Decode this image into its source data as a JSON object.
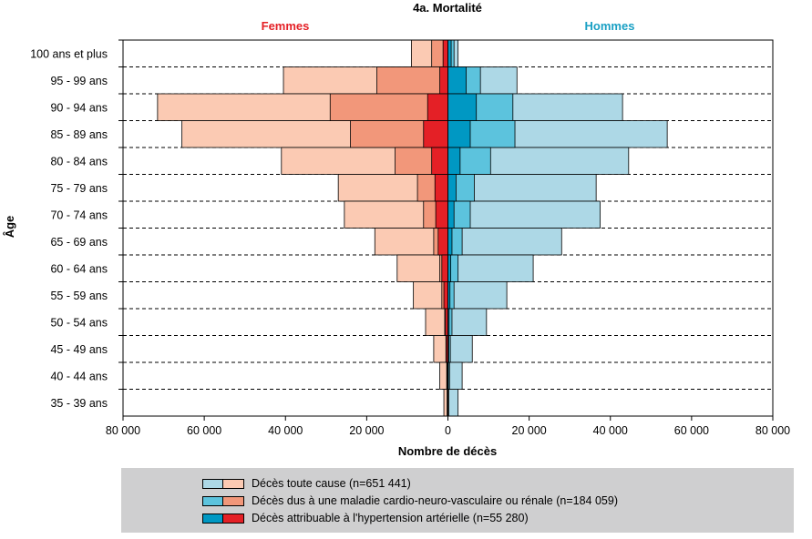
{
  "chart_data": {
    "type": "bar",
    "subtype": "population-pyramid",
    "title": "4a. Mortalité",
    "left_label": "Femmes",
    "right_label": "Hommes",
    "xlabel": "Nombre de décès",
    "ylabel": "Âge",
    "xlim": [
      -80000,
      80000
    ],
    "x_ticks": [
      -80000,
      -60000,
      -40000,
      -20000,
      0,
      20000,
      40000,
      60000,
      80000
    ],
    "x_tick_labels": [
      "80 000",
      "60 000",
      "40 000",
      "20 000",
      "0",
      "20 000",
      "40 000",
      "60 000",
      "80 000"
    ],
    "categories": [
      "100 ans et plus",
      "95 - 99 ans",
      "90 - 94 ans",
      "85 - 89 ans",
      "80 - 84 ans",
      "75 - 79 ans",
      "70 - 74 ans",
      "65 - 69 ans",
      "60 - 64 ans",
      "55 - 59 ans",
      "50 - 54 ans",
      "45 - 49 ans",
      "40 - 44 ans",
      "35 - 39 ans"
    ],
    "series": [
      {
        "name": "Décès toute cause (n=651 441)",
        "sex": "Femmes",
        "level": "total",
        "values": [
          9000,
          40500,
          71500,
          65500,
          41000,
          27000,
          25500,
          18000,
          12500,
          8500,
          5500,
          3500,
          2000,
          1000
        ]
      },
      {
        "name": "Décès dus à une maladie cardio-neuro-vasculaire ou rénale (n=184 059)",
        "sex": "Femmes",
        "level": "cnv",
        "values": [
          4000,
          17500,
          29000,
          24000,
          13000,
          7500,
          6000,
          3500,
          2000,
          1500,
          800,
          500,
          300,
          200
        ]
      },
      {
        "name": "Décès attribuable à l'hypertension artérielle (n=55 280)",
        "sex": "Femmes",
        "level": "hta",
        "values": [
          1200,
          2000,
          5000,
          6000,
          4000,
          3200,
          3000,
          2400,
          1500,
          1000,
          600,
          400,
          200,
          100
        ]
      },
      {
        "name": "Décès toute cause (n=651 441)",
        "sex": "Hommes",
        "level": "total",
        "values": [
          2500,
          17000,
          43000,
          54000,
          44500,
          36500,
          37500,
          28000,
          21000,
          14500,
          9500,
          6000,
          3500,
          2500
        ]
      },
      {
        "name": "Décès dus à une maladie cardio-neuro-vasculaire ou rénale (n=184 059)",
        "sex": "Hommes",
        "level": "cnv",
        "values": [
          1500,
          8000,
          16000,
          16500,
          10500,
          6500,
          5500,
          3500,
          2500,
          1500,
          1000,
          600,
          400,
          200
        ]
      },
      {
        "name": "Décès attribuable à l'hypertension artérielle (n=55 280)",
        "sex": "Hommes",
        "level": "hta",
        "values": [
          800,
          4500,
          7000,
          5500,
          3000,
          2000,
          1500,
          1000,
          700,
          500,
          300,
          200,
          100,
          50
        ]
      }
    ],
    "legend": [
      {
        "label": "Décès toute cause (n=651 441)",
        "colors": [
          "#add8e6",
          "#fbcab3"
        ]
      },
      {
        "label": "Décès dus à une maladie cardio-neuro-vasculaire ou rénale (n=184 059)",
        "colors": [
          "#5cc3dd",
          "#f2977a"
        ]
      },
      {
        "label": "Décès attribuable à l'hypertension artérielle (n=55 280)",
        "colors": [
          "#0098c3",
          "#e42026"
        ]
      }
    ],
    "colors": {
      "men_total": "#add8e6",
      "men_cnv": "#5cc3dd",
      "men_hta": "#0098c3",
      "women_total": "#fbcab3",
      "women_cnv": "#f2977a",
      "women_hta": "#e42026",
      "femmes_label": "#e42026",
      "hommes_label": "#1aa0c4"
    },
    "grid": true,
    "legend_position": "bottom"
  }
}
